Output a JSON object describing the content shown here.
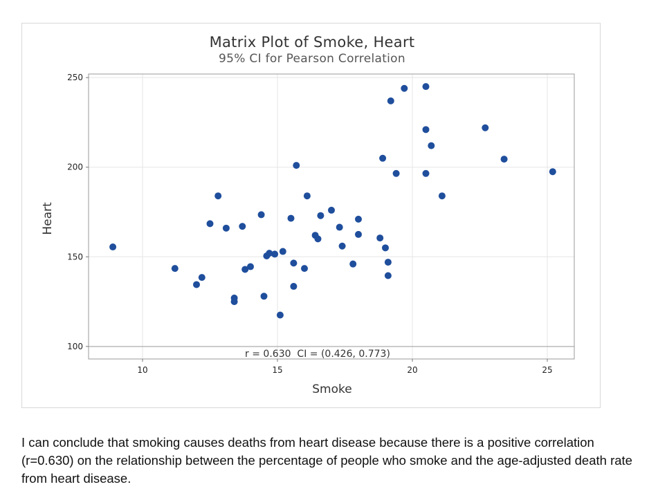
{
  "chart_data": {
    "type": "scatter",
    "title": "Matrix Plot of Smoke, Heart",
    "subtitle": "95% CI for Pearson Correlation",
    "xlabel": "Smoke",
    "ylabel": "Heart",
    "xlim": [
      8,
      26
    ],
    "ylim": [
      93,
      252
    ],
    "xticks": [
      10,
      15,
      20,
      25
    ],
    "yticks": [
      100,
      150,
      200,
      250
    ],
    "grid": true,
    "point_color": "#1f4e9c",
    "correlation_text": "r = 0.630  CI = (0.426, 0.773)",
    "points": [
      {
        "x": 8.9,
        "y": 155.5
      },
      {
        "x": 11.2,
        "y": 143.5
      },
      {
        "x": 12.0,
        "y": 134.5
      },
      {
        "x": 12.2,
        "y": 138.5
      },
      {
        "x": 12.5,
        "y": 168.5
      },
      {
        "x": 12.8,
        "y": 184
      },
      {
        "x": 13.1,
        "y": 166
      },
      {
        "x": 13.4,
        "y": 127
      },
      {
        "x": 13.4,
        "y": 125
      },
      {
        "x": 13.7,
        "y": 167
      },
      {
        "x": 13.8,
        "y": 143
      },
      {
        "x": 14.0,
        "y": 144.5
      },
      {
        "x": 14.4,
        "y": 173.5
      },
      {
        "x": 14.5,
        "y": 128
      },
      {
        "x": 14.6,
        "y": 150.5
      },
      {
        "x": 14.7,
        "y": 152
      },
      {
        "x": 14.9,
        "y": 151.5
      },
      {
        "x": 15.1,
        "y": 117.5
      },
      {
        "x": 15.2,
        "y": 153
      },
      {
        "x": 15.5,
        "y": 171.5
      },
      {
        "x": 15.6,
        "y": 146.5
      },
      {
        "x": 15.6,
        "y": 133.5
      },
      {
        "x": 15.7,
        "y": 201
      },
      {
        "x": 16.0,
        "y": 143.5
      },
      {
        "x": 16.1,
        "y": 184
      },
      {
        "x": 16.4,
        "y": 162
      },
      {
        "x": 16.5,
        "y": 160
      },
      {
        "x": 16.6,
        "y": 173
      },
      {
        "x": 17.0,
        "y": 176
      },
      {
        "x": 17.3,
        "y": 166.5
      },
      {
        "x": 17.4,
        "y": 156
      },
      {
        "x": 17.8,
        "y": 146
      },
      {
        "x": 18.0,
        "y": 171
      },
      {
        "x": 18.0,
        "y": 162.5
      },
      {
        "x": 18.8,
        "y": 160.5
      },
      {
        "x": 18.9,
        "y": 205
      },
      {
        "x": 19.0,
        "y": 155
      },
      {
        "x": 19.1,
        "y": 147
      },
      {
        "x": 19.1,
        "y": 139.5
      },
      {
        "x": 19.2,
        "y": 237
      },
      {
        "x": 19.4,
        "y": 196.5
      },
      {
        "x": 19.7,
        "y": 244
      },
      {
        "x": 20.5,
        "y": 245
      },
      {
        "x": 20.5,
        "y": 221
      },
      {
        "x": 20.5,
        "y": 196.5
      },
      {
        "x": 20.7,
        "y": 212
      },
      {
        "x": 21.1,
        "y": 184
      },
      {
        "x": 22.7,
        "y": 222
      },
      {
        "x": 23.4,
        "y": 204.5
      },
      {
        "x": 25.2,
        "y": 197.5
      }
    ]
  },
  "conclusion_text": "I can conclude that smoking causes deaths from heart disease because there is a positive correlation (r=0.630) on the relationship between the percentage of people who smoke and the age-adjusted death rate from heart disease."
}
